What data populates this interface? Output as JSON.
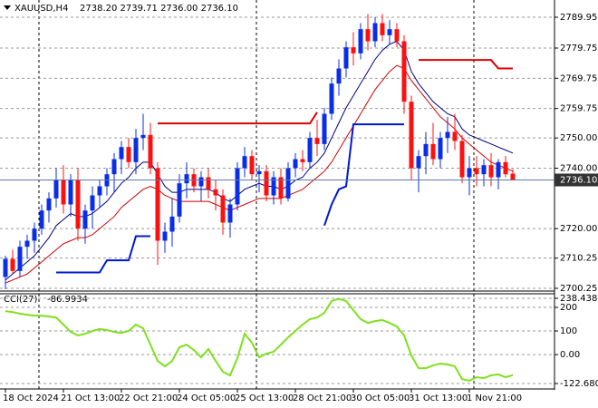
{
  "chart_data": [
    {
      "type": "candlestick",
      "title": "XAUUSD,H4",
      "ohlc_text": "2738.20 2739.71 2736.00 2736.10",
      "categories": [
        "18 Oct 2024",
        null,
        null,
        null,
        null,
        null,
        null,
        null,
        "21 Oct 13:00",
        null,
        null,
        null,
        null,
        null,
        null,
        null,
        "22 Oct 21:00",
        null,
        null,
        null,
        null,
        null,
        null,
        null,
        "24 Oct 05:00",
        null,
        null,
        null,
        null,
        null,
        null,
        null,
        "25 Oct 13:00",
        null,
        null,
        null,
        null,
        null,
        null,
        null,
        "28 Oct 21:00",
        null,
        null,
        null,
        null,
        null,
        null,
        null,
        "30 Oct 05:00",
        null,
        null,
        null,
        null,
        null,
        null,
        null,
        "31 Oct 13:00",
        null,
        null,
        null,
        null,
        null,
        null,
        null,
        "1 Nov 21:00",
        null,
        null,
        null,
        null,
        null,
        null
      ],
      "open": [
        2704,
        2710,
        2706,
        2714,
        2716,
        2720,
        2726,
        2730,
        2736,
        2728,
        2736,
        2720,
        2726,
        2731,
        2734,
        2738,
        2743,
        2747,
        2742,
        2750,
        2751,
        2740,
        2716,
        2719,
        2724,
        2735,
        2738,
        2734,
        2737,
        2733,
        2731,
        2722,
        2728,
        2740,
        2744,
        2738,
        2739,
        2731,
        2737,
        2730,
        2740,
        2743,
        2742,
        2750,
        2748,
        2758,
        2768,
        2773,
        2780,
        2778,
        2786,
        2782,
        2788,
        2784,
        2786,
        2782,
        2762,
        2740,
        2744,
        2748,
        2743,
        2750,
        2752,
        2749,
        2737,
        2740,
        2738,
        2741,
        2737,
        2742,
        2738.2
      ],
      "high": [
        2711,
        2713,
        2716,
        2718,
        2722,
        2728,
        2732,
        2740,
        2741,
        2738,
        2740,
        2728,
        2734,
        2736,
        2740,
        2745,
        2749,
        2750,
        2753,
        2758,
        2755,
        2742,
        2722,
        2730,
        2738,
        2742,
        2740,
        2739,
        2740,
        2736,
        2733,
        2730,
        2742,
        2747,
        2746,
        2741,
        2741,
        2739,
        2740,
        2742,
        2745,
        2746,
        2752,
        2756,
        2760,
        2770,
        2776,
        2782,
        2785,
        2788,
        2791,
        2790,
        2791,
        2789,
        2788,
        2784,
        2764,
        2746,
        2752,
        2755,
        2752,
        2757,
        2758,
        2751,
        2744,
        2744,
        2743,
        2745,
        2743,
        2744,
        2739.71
      ],
      "low": [
        2700,
        2705,
        2704,
        2710,
        2712,
        2718,
        2722,
        2727,
        2725,
        2724,
        2716,
        2715,
        2720,
        2727,
        2731,
        2732,
        2738,
        2740,
        2738,
        2746,
        2738,
        2708,
        2712,
        2714,
        2722,
        2730,
        2732,
        2729,
        2730,
        2726,
        2718,
        2717,
        2726,
        2737,
        2736,
        2732,
        2729,
        2728,
        2728,
        2729,
        2737,
        2739,
        2740,
        2744,
        2746,
        2756,
        2764,
        2770,
        2774,
        2776,
        2779,
        2780,
        2782,
        2781,
        2780,
        2758,
        2736,
        2732,
        2738,
        2741,
        2740,
        2745,
        2746,
        2735,
        2731,
        2734,
        2734,
        2734,
        2733,
        2737,
        2736
      ],
      "close": [
        2710,
        2706,
        2714,
        2716,
        2720,
        2726,
        2730,
        2736,
        2728,
        2736,
        2720,
        2726,
        2731,
        2734,
        2738,
        2743,
        2747,
        2742,
        2750,
        2751,
        2740,
        2716,
        2719,
        2724,
        2735,
        2738,
        2734,
        2737,
        2733,
        2731,
        2722,
        2728,
        2740,
        2744,
        2738,
        2739,
        2731,
        2737,
        2730,
        2740,
        2743,
        2742,
        2750,
        2748,
        2758,
        2768,
        2773,
        2780,
        2778,
        2786,
        2782,
        2788,
        2784,
        2786,
        2782,
        2762,
        2740,
        2744,
        2748,
        2743,
        2750,
        2752,
        2749,
        2737,
        2740,
        2738,
        2741,
        2737,
        2742,
        2738,
        2736.1
      ],
      "up_color": "#0a2ee8",
      "down_color": "#ff1010",
      "lines": [
        {
          "color": "#000080",
          "width": 1,
          "values": [
            2703,
            2705,
            2707,
            2709,
            2711,
            2714,
            2717,
            2721,
            2723,
            2725,
            2724,
            2724,
            2725,
            2727,
            2729,
            2732,
            2735,
            2737,
            2740,
            2742,
            2742,
            2738,
            2734,
            2732,
            2732,
            2733,
            2733,
            2733,
            2733,
            2732,
            2730,
            2729,
            2731,
            2733,
            2734,
            2735,
            2734,
            2734,
            2733,
            2734,
            2736,
            2737,
            2740,
            2742,
            2745,
            2750,
            2755,
            2760,
            2764,
            2768,
            2772,
            2776,
            2779,
            2781,
            2782,
            2779,
            2772,
            2768,
            2765,
            2762,
            2760,
            2758,
            2757,
            2753,
            2751,
            2750,
            2749,
            2748,
            2747,
            2746,
            2745
          ]
        },
        {
          "color": "#cc0000",
          "width": 1,
          "values": [
            2702,
            2703,
            2704,
            2705,
            2707,
            2709,
            2711,
            2713,
            2715,
            2716,
            2717,
            2717,
            2718,
            2720,
            2722,
            2724,
            2727,
            2729,
            2731,
            2733,
            2734,
            2733,
            2731,
            2730,
            2729,
            2729,
            2729,
            2729,
            2729,
            2728,
            2727,
            2726,
            2727,
            2728,
            2729,
            2730,
            2730,
            2730,
            2730,
            2731,
            2732,
            2733,
            2735,
            2737,
            2739,
            2742,
            2746,
            2750,
            2754,
            2758,
            2762,
            2766,
            2769,
            2772,
            2774,
            2773,
            2769,
            2766,
            2763,
            2760,
            2757,
            2755,
            2753,
            2750,
            2748,
            2746,
            2744,
            2742,
            2741,
            2740,
            2739
          ]
        },
        {
          "color": "#0018d0",
          "width": 2,
          "values": [
            null,
            null,
            null,
            null,
            null,
            null,
            null,
            2705.5,
            2705.5,
            2705.5,
            2705.5,
            2705.5,
            2705.5,
            2705.5,
            2709.5,
            2709.5,
            2709.5,
            2709.5,
            2717.5,
            2717.5,
            2717.5,
            null,
            null,
            null,
            null,
            null,
            null,
            null,
            null,
            null,
            null,
            null,
            null,
            null,
            null,
            null,
            null,
            null,
            null,
            null,
            null,
            null,
            null,
            null,
            2721,
            2728,
            2733,
            2734,
            2754.5,
            2754.5,
            2754.5,
            2754.5,
            2754.5,
            2754.5,
            2754.5,
            2754.5,
            null,
            null,
            null,
            null,
            null,
            null,
            null,
            null,
            null,
            null,
            null,
            null,
            null,
            null,
            null
          ]
        },
        {
          "color": "#dd0000",
          "width": 2,
          "values": [
            null,
            null,
            null,
            null,
            null,
            null,
            null,
            null,
            null,
            null,
            null,
            null,
            null,
            null,
            null,
            null,
            null,
            null,
            null,
            null,
            null,
            2754.8,
            2754.8,
            2754.8,
            2754.8,
            2754.8,
            2754.8,
            2754.8,
            2754.8,
            2754.8,
            2754.8,
            2754.8,
            2754.8,
            2754.8,
            2754.8,
            2754.8,
            2754.8,
            2754.8,
            2754.8,
            2754.8,
            2754.8,
            2754.8,
            2754.8,
            2758.5,
            null,
            null,
            null,
            null,
            null,
            null,
            null,
            null,
            null,
            null,
            null,
            null,
            null,
            2775.8,
            2775.8,
            2775.8,
            2775.8,
            2775.8,
            2775.8,
            2775.8,
            2775.8,
            2775.8,
            2775.8,
            2775.8,
            2773,
            2773,
            2773
          ]
        }
      ],
      "price_line": {
        "value": 2736.1,
        "label": "2736.10",
        "color": "#5d79a8"
      },
      "ylim": [
        2699.65,
        2795.65
      ],
      "yticks": [
        2789.95,
        2779.75,
        2769.75,
        2759.75,
        {
          "value": 2750,
          "label": "2750.00"
        },
        {
          "value": 2740,
          "label": "2740.00"
        },
        {
          "value": 2720,
          "label": "2720.00"
        },
        2710.25,
        2700.25
      ],
      "grid": true
    },
    {
      "type": "line",
      "title": "CCI(27)",
      "series": [
        {
          "color": "#7fe01f",
          "values": [
            184,
            180,
            173,
            169,
            165,
            165,
            161,
            157,
            127,
            96,
            81,
            88,
            100,
            108,
            104,
            96,
            92,
            100,
            127,
            111,
            42,
            -27,
            -50,
            -27,
            31,
            42,
            19,
            -12,
            23,
            -27,
            -73,
            -88,
            -15,
            88,
            50,
            -12,
            4,
            12,
            42,
            73,
            100,
            127,
            150,
            157,
            177,
            227,
            236,
            227,
            188,
            150,
            134,
            142,
            146,
            134,
            119,
            81,
            -4,
            -58,
            -58,
            -46,
            -38,
            -42,
            -50,
            -104,
            -111,
            -96,
            -100,
            -88,
            -84,
            -96,
            -86.9934
          ]
        }
      ],
      "ylim": [
        -122.6802,
        238.4387
      ],
      "yticks": [
        238.4387,
        200,
        100,
        {
          "value": 0,
          "label": "0.00"
        },
        -122.6802
      ],
      "grid": true
    }
  ]
}
